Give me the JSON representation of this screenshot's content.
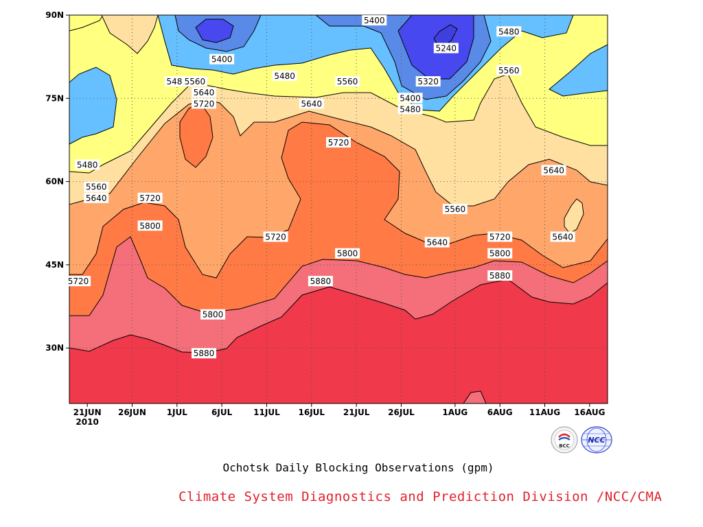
{
  "chart_data": {
    "type": "heatmap",
    "title": "Ochotsk Daily Blocking Observations (gpm)",
    "subtitle": "",
    "xlabel": "",
    "ylabel": "",
    "x_ticks": [
      "21JUN",
      "26JUN",
      "1JUL",
      "6JUL",
      "11JUL",
      "16JUL",
      "21JUL",
      "26JUL",
      "1AUG",
      "6AUG",
      "11AUG",
      "16AUG"
    ],
    "x_year_label": "2010",
    "x_range": [
      "2010-06-19",
      "2010-08-18"
    ],
    "y_ticks": [
      "30N",
      "45N",
      "60N",
      "75N",
      "90N"
    ],
    "ylim": [
      20,
      90
    ],
    "grid": true,
    "contour_levels": [
      5240,
      5320,
      5400,
      5480,
      5560,
      5640,
      5720,
      5800,
      5880
    ],
    "colors": {
      "below_5240": "#3f3fe0",
      "5240_5320": "#4848f0",
      "5320_5400": "#5a8ae8",
      "5400_5480": "#66c0ff",
      "5480_5560": "#ffff80",
      "5560_5640": "#ffe0a0",
      "5640_5720": "#ffa76a",
      "5720_5800": "#ff7a45",
      "5800_5880": "#f56f7a",
      "above_5880": "#f0394a"
    },
    "contour_labels": [
      {
        "value": "5400",
        "date": "2010-07-23",
        "lat": 89
      },
      {
        "value": "5400",
        "date": "2010-07-06",
        "lat": 82
      },
      {
        "value": "5480",
        "date": "2010-08-07",
        "lat": 87
      },
      {
        "value": "5240",
        "date": "2010-07-31",
        "lat": 84
      },
      {
        "value": "5480",
        "date": "2010-07-01",
        "lat": 78
      },
      {
        "value": "5560",
        "date": "2010-07-03",
        "lat": 78
      },
      {
        "value": "5480",
        "date": "2010-07-13",
        "lat": 79
      },
      {
        "value": "5560",
        "date": "2010-07-20",
        "lat": 78
      },
      {
        "value": "5320",
        "date": "2010-07-29",
        "lat": 78
      },
      {
        "value": "5560",
        "date": "2010-08-07",
        "lat": 80
      },
      {
        "value": "5640",
        "date": "2010-07-04",
        "lat": 76
      },
      {
        "value": "5720",
        "date": "2010-07-04",
        "lat": 74
      },
      {
        "value": "5640",
        "date": "2010-07-16",
        "lat": 74
      },
      {
        "value": "5400",
        "date": "2010-07-27",
        "lat": 75
      },
      {
        "value": "5480",
        "date": "2010-07-27",
        "lat": 73
      },
      {
        "value": "5720",
        "date": "2010-07-19",
        "lat": 67
      },
      {
        "value": "5480",
        "date": "2010-06-21",
        "lat": 63
      },
      {
        "value": "5640",
        "date": "2010-08-12",
        "lat": 62
      },
      {
        "value": "5560",
        "date": "2010-06-22",
        "lat": 59
      },
      {
        "value": "5640",
        "date": "2010-06-22",
        "lat": 57
      },
      {
        "value": "5720",
        "date": "2010-06-28",
        "lat": 57
      },
      {
        "value": "5560",
        "date": "2010-08-01",
        "lat": 55
      },
      {
        "value": "5800",
        "date": "2010-06-28",
        "lat": 52
      },
      {
        "value": "5720",
        "date": "2010-07-12",
        "lat": 50
      },
      {
        "value": "5640",
        "date": "2010-07-30",
        "lat": 49
      },
      {
        "value": "5720",
        "date": "2010-08-06",
        "lat": 50
      },
      {
        "value": "5640",
        "date": "2010-08-13",
        "lat": 50
      },
      {
        "value": "5800",
        "date": "2010-07-20",
        "lat": 47
      },
      {
        "value": "5800",
        "date": "2010-08-06",
        "lat": 47
      },
      {
        "value": "5880",
        "date": "2010-08-06",
        "lat": 43
      },
      {
        "value": "5720",
        "date": "2010-06-20",
        "lat": 42
      },
      {
        "value": "5880",
        "date": "2010-07-17",
        "lat": 42
      },
      {
        "value": "5800",
        "date": "2010-07-05",
        "lat": 36
      },
      {
        "value": "5880",
        "date": "2010-07-04",
        "lat": 29
      }
    ]
  },
  "footer": {
    "caption": "Ochotsk Daily Blocking Observations (gpm)",
    "credit": "Climate System Diagnostics and Prediction Division /NCC/CMA",
    "logo_left_text": "BCC",
    "logo_right_text": "NCC"
  }
}
